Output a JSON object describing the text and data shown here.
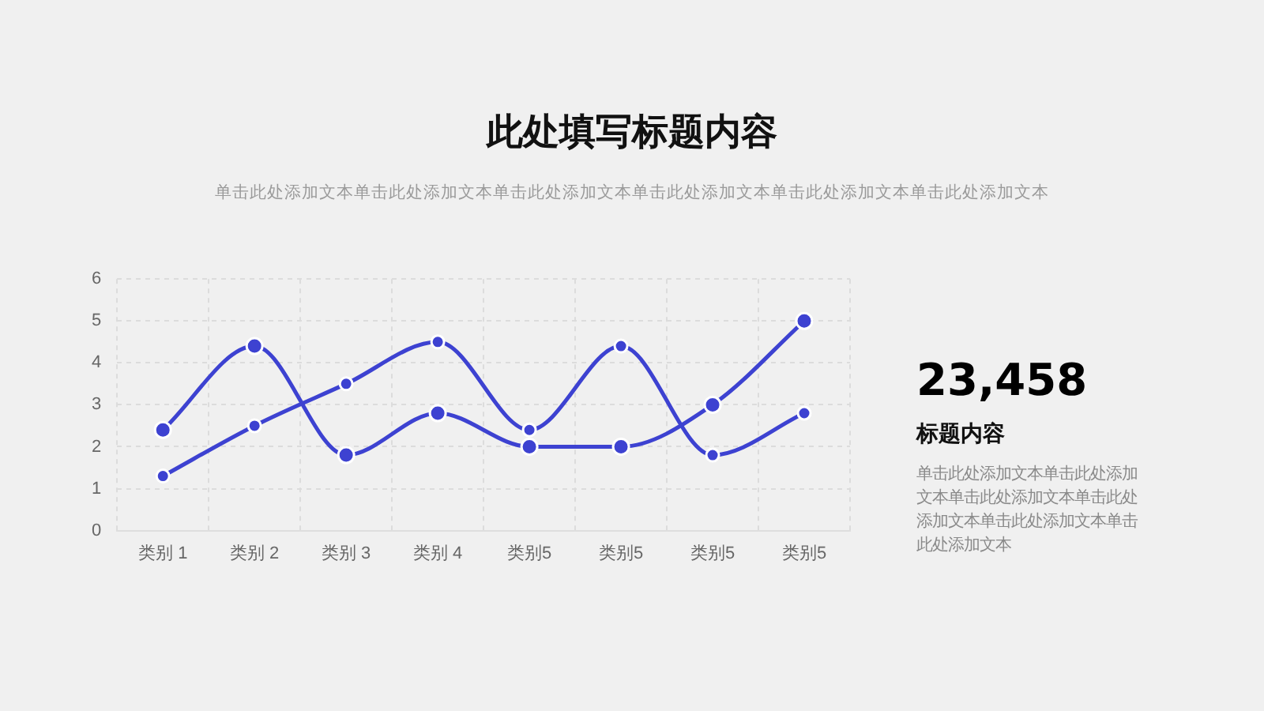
{
  "chart_data": {
    "type": "line",
    "title": "此处填写标题内容",
    "subtitle": "单击此处添加文本单击此处添加文本单击此处添加文本单击此处添加文本单击此处添加文本单击此处添加文本",
    "categories": [
      "类别 1",
      "类别 2",
      "类别 3",
      "类别 4",
      "类别5",
      "类别5",
      "类别5",
      "类别5"
    ],
    "series": [
      {
        "color": "#3d42d1",
        "values": [
          2.4,
          4.4,
          1.8,
          2.8,
          2.0,
          2.0,
          3.0,
          5.0
        ]
      },
      {
        "color": "#3d42d1",
        "values": [
          1.3,
          2.5,
          3.5,
          4.5,
          2.4,
          4.4,
          1.8,
          2.8
        ]
      }
    ],
    "ylim": [
      0,
      6
    ],
    "yticks": [
      0,
      1,
      2,
      3,
      4,
      5,
      6
    ],
    "grid": true,
    "marker": "circle",
    "line_style": "solid",
    "annotations": [
      "23,458",
      "标题内容",
      "单击此处添加文本单击此处添加文本单击此处添加文本单击此处添加文本单击此处添加文本单击此处添加文本"
    ]
  }
}
